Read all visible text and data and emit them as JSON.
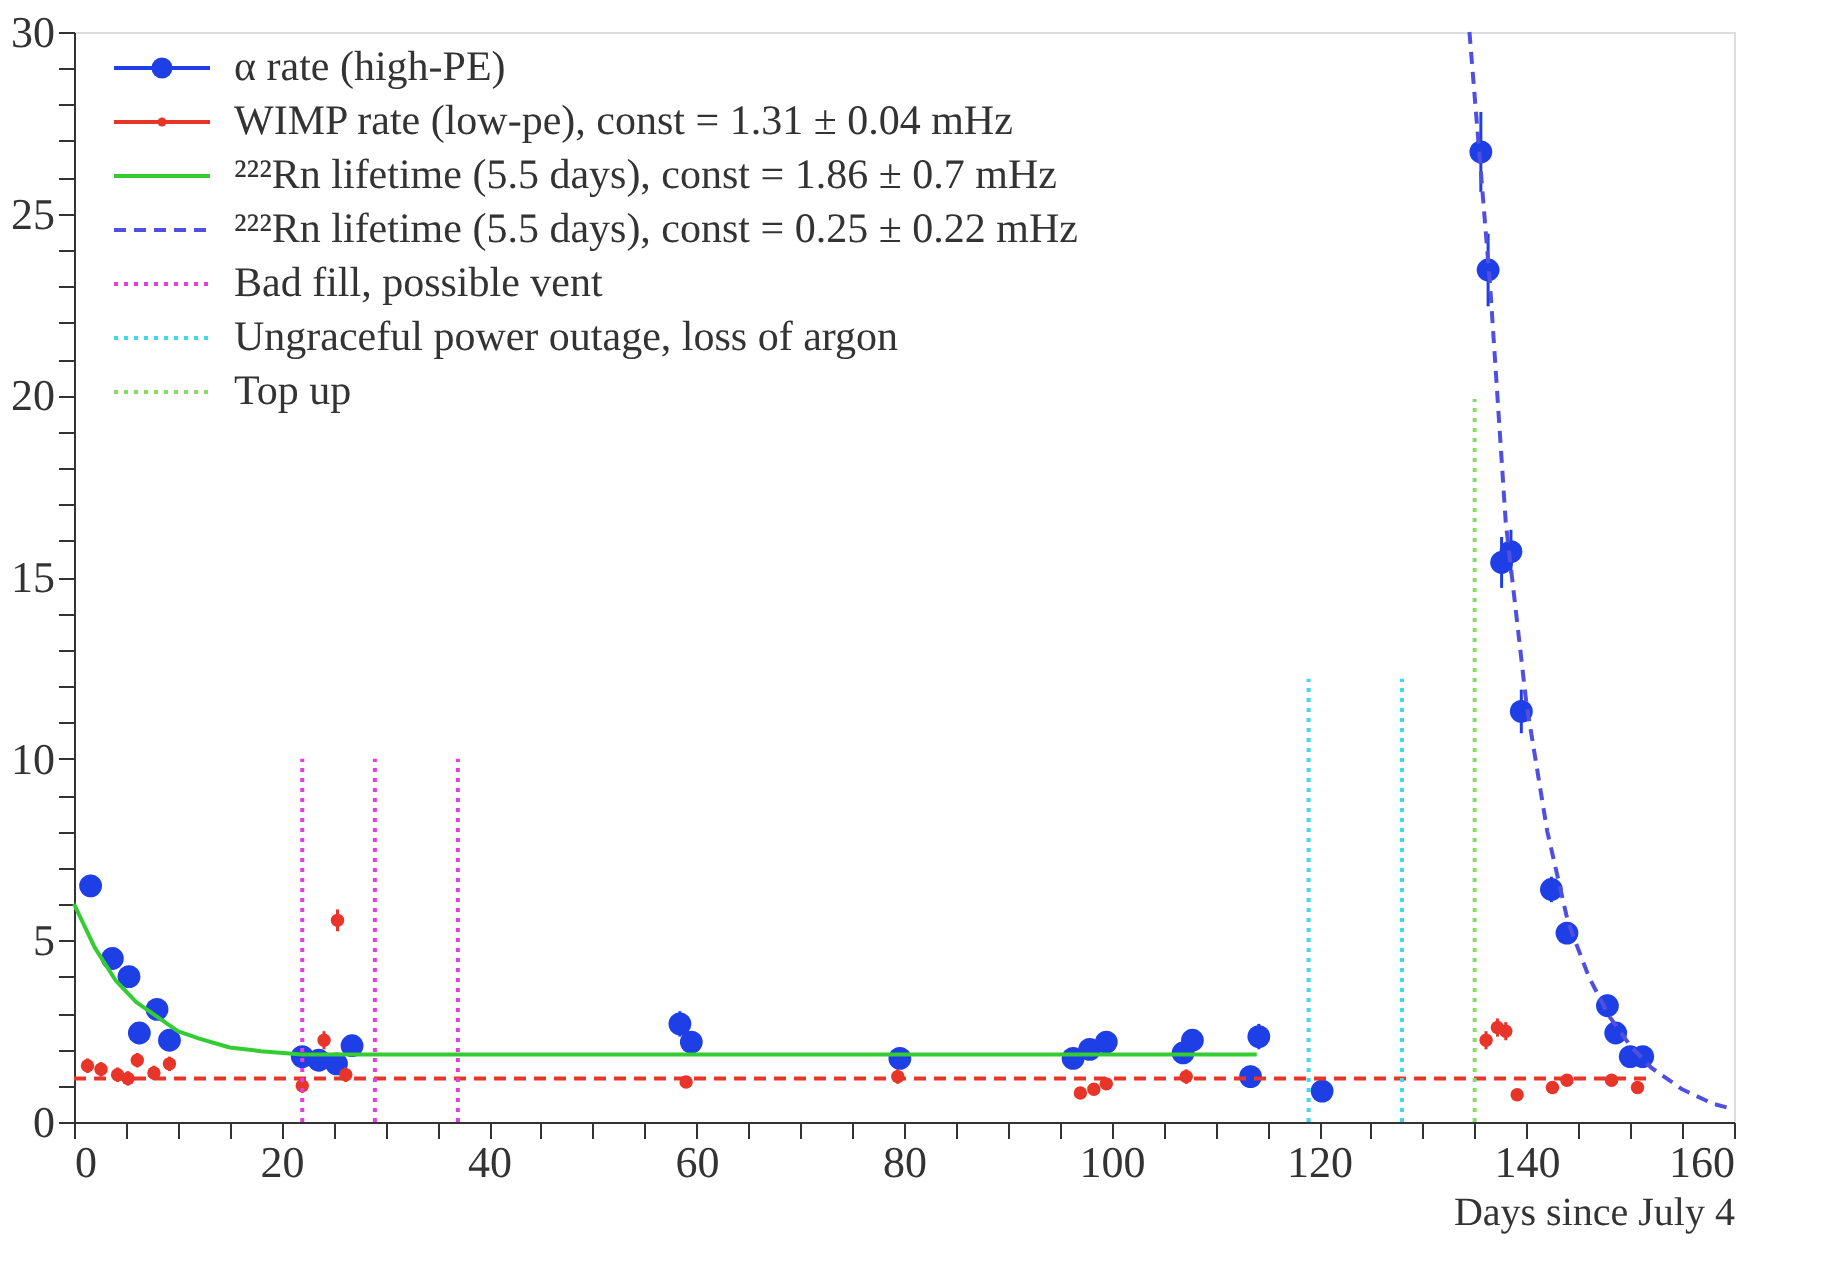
{
  "chart_data": {
    "type": "scatter",
    "xlabel": "Days since July 4",
    "xlim": [
      0,
      160
    ],
    "ylim": [
      0,
      30
    ],
    "xticks": [
      0,
      {
        "value": 5,
        "label": null
      },
      {
        "value": 10,
        "label": null
      },
      {
        "value": 15,
        "label": null
      },
      20,
      {
        "value": 25,
        "label": null
      },
      {
        "value": 30,
        "label": null
      },
      {
        "value": 35,
        "label": null
      },
      40,
      {
        "value": 45,
        "label": null
      },
      {
        "value": 50,
        "label": null
      },
      {
        "value": 55,
        "label": null
      },
      60,
      {
        "value": 65,
        "label": null
      },
      {
        "value": 70,
        "label": null
      },
      {
        "value": 75,
        "label": null
      },
      80,
      {
        "value": 85,
        "label": null
      },
      {
        "value": 90,
        "label": null
      },
      {
        "value": 95,
        "label": null
      },
      100,
      {
        "value": 105,
        "label": null
      },
      {
        "value": 110,
        "label": null
      },
      {
        "value": 115,
        "label": null
      },
      120,
      {
        "value": 125,
        "label": null
      },
      {
        "value": 130,
        "label": null
      },
      {
        "value": 135,
        "label": null
      },
      140,
      {
        "value": 145,
        "label": null
      },
      {
        "value": 150,
        "label": null
      },
      {
        "value": 155,
        "label": null
      },
      160
    ],
    "yticks": [
      0,
      {
        "value": 1,
        "label": null
      },
      {
        "value": 2,
        "label": null
      },
      {
        "value": 3,
        "label": null
      },
      {
        "value": 4,
        "label": null
      },
      5,
      {
        "value": 6,
        "label": null
      },
      {
        "value": 7,
        "label": null
      },
      {
        "value": 8,
        "label": null
      },
      {
        "value": 9,
        "label": null
      },
      10,
      {
        "value": 11,
        "label": null
      },
      {
        "value": 12,
        "label": null
      },
      {
        "value": 13,
        "label": null
      },
      {
        "value": 14,
        "label": null
      },
      15,
      {
        "value": 16,
        "label": null
      },
      {
        "value": 17,
        "label": null
      },
      {
        "value": 18,
        "label": null
      },
      {
        "value": 19,
        "label": null
      },
      20,
      {
        "value": 21,
        "label": null
      },
      {
        "value": 22,
        "label": null
      },
      {
        "value": 23,
        "label": null
      },
      {
        "value": 24,
        "label": null
      },
      25,
      {
        "value": 26,
        "label": null
      },
      {
        "value": 27,
        "label": null
      },
      {
        "value": 28,
        "label": null
      },
      {
        "value": 29,
        "label": null
      },
      30
    ],
    "grid": false,
    "legend": "top left",
    "series": [
      {
        "name": "α rate (high-PE)",
        "type": "scatter",
        "marker": "circle",
        "color": "#1f3fe6",
        "x": [
          1.6,
          3.7,
          5.3,
          8.0,
          6.3,
          9.2,
          22.0,
          23.6,
          25.3,
          26.8,
          58.4,
          59.5,
          79.6,
          96.3,
          97.9,
          99.5,
          106.9,
          107.8,
          114.2,
          113.4,
          120.3,
          135.6,
          136.3,
          137.6,
          138.5,
          139.5,
          142.4,
          143.9,
          147.8,
          148.6,
          150.0,
          151.2
        ],
        "values": [
          6.5,
          4.5,
          4.0,
          3.1,
          2.45,
          2.25,
          1.8,
          1.7,
          1.6,
          2.1,
          2.7,
          2.2,
          1.75,
          1.75,
          2.0,
          2.2,
          1.9,
          2.25,
          2.35,
          1.25,
          0.85,
          26.7,
          23.45,
          15.4,
          15.7,
          11.3,
          6.4,
          5.2,
          3.2,
          2.45,
          1.8,
          1.8
        ],
        "errors": [
          0.3,
          0.25,
          0.25,
          0.25,
          0.25,
          0.25,
          0.2,
          0.2,
          0.2,
          0.2,
          0.35,
          0.3,
          0.2,
          0.2,
          0.2,
          0.2,
          0.25,
          0.3,
          0.35,
          0.3,
          0.2,
          1.1,
          1.0,
          0.7,
          0.6,
          0.6,
          0.35,
          0.3,
          0.3,
          0.25,
          0.2,
          0.2
        ]
      },
      {
        "name": "WIMP rate (low-pe), const = 1.31 ± 0.04 mHz",
        "type": "scatter",
        "marker": "circle",
        "color": "#e8352a",
        "x": [
          1.3,
          2.6,
          4.2,
          5.2,
          6.1,
          7.7,
          9.2,
          22.0,
          24.1,
          25.4,
          26.2,
          59.0,
          79.4,
          97.0,
          98.3,
          99.5,
          107.2,
          136.1,
          137.2,
          138.0,
          139.1,
          142.5,
          143.9,
          148.2,
          150.7
        ],
        "values": [
          1.55,
          1.45,
          1.3,
          1.2,
          1.7,
          1.35,
          1.6,
          1.0,
          2.25,
          5.55,
          1.3,
          1.1,
          1.25,
          0.8,
          0.9,
          1.05,
          1.25,
          2.25,
          2.6,
          2.5,
          0.75,
          0.95,
          1.15,
          1.15,
          0.95
        ],
        "errors": [
          0.2,
          0.2,
          0.2,
          0.2,
          0.2,
          0.2,
          0.2,
          0.2,
          0.25,
          0.3,
          0.2,
          0.15,
          0.2,
          0.15,
          0.15,
          0.15,
          0.2,
          0.25,
          0.25,
          0.25,
          0.1,
          0.15,
          0.15,
          0.15,
          0.15
        ]
      },
      {
        "type": "line",
        "line_style": "dashed",
        "color": "#e8352a",
        "x": [
          0,
          152
        ],
        "values": [
          1.2,
          1.2
        ]
      },
      {
        "name": "²²²Rn lifetime (5.5 days), const = 1.86 ± 0.7 mHz",
        "type": "line",
        "line_style": "solid",
        "color": "#33cc33",
        "x": [
          0,
          2,
          4,
          6,
          8,
          10,
          12,
          15,
          18,
          22,
          114
        ],
        "values": [
          6.0,
          4.8,
          3.9,
          3.3,
          2.9,
          2.5,
          2.3,
          2.05,
          1.95,
          1.86,
          1.86
        ]
      },
      {
        "name": "²²²Rn lifetime (5.5 days), const = 0.25 ± 0.22 mHz",
        "type": "line",
        "line_style": "dashed",
        "color": "#5050e0",
        "x": [
          134.5,
          136.5,
          138,
          140,
          142,
          144,
          146,
          148,
          150,
          152,
          155,
          158,
          160
        ],
        "values": [
          30,
          23,
          16.5,
          11.5,
          8,
          5.5,
          4,
          2.9,
          2.1,
          1.5,
          0.9,
          0.5,
          0.35
        ]
      },
      {
        "name": "Bad fill, possible vent",
        "type": "line",
        "line_style": "dotted",
        "color": "#e040e0",
        "x": [
          22,
          22,
          null,
          29,
          29,
          null,
          37,
          37
        ],
        "values": [
          0,
          10,
          null,
          0,
          10,
          null,
          0,
          10
        ]
      },
      {
        "name": "Ungraceful power outage, loss of argon",
        "type": "line",
        "line_style": "dotted",
        "color": "#40d8ee",
        "x": [
          119,
          119,
          null,
          128,
          128
        ],
        "values": [
          0,
          12.2,
          null,
          0,
          12.2
        ]
      },
      {
        "name": "Top up",
        "type": "line",
        "line_style": "dotted",
        "color": "#88dd66",
        "x": [
          135,
          135
        ],
        "values": [
          0,
          19.9
        ]
      }
    ]
  }
}
